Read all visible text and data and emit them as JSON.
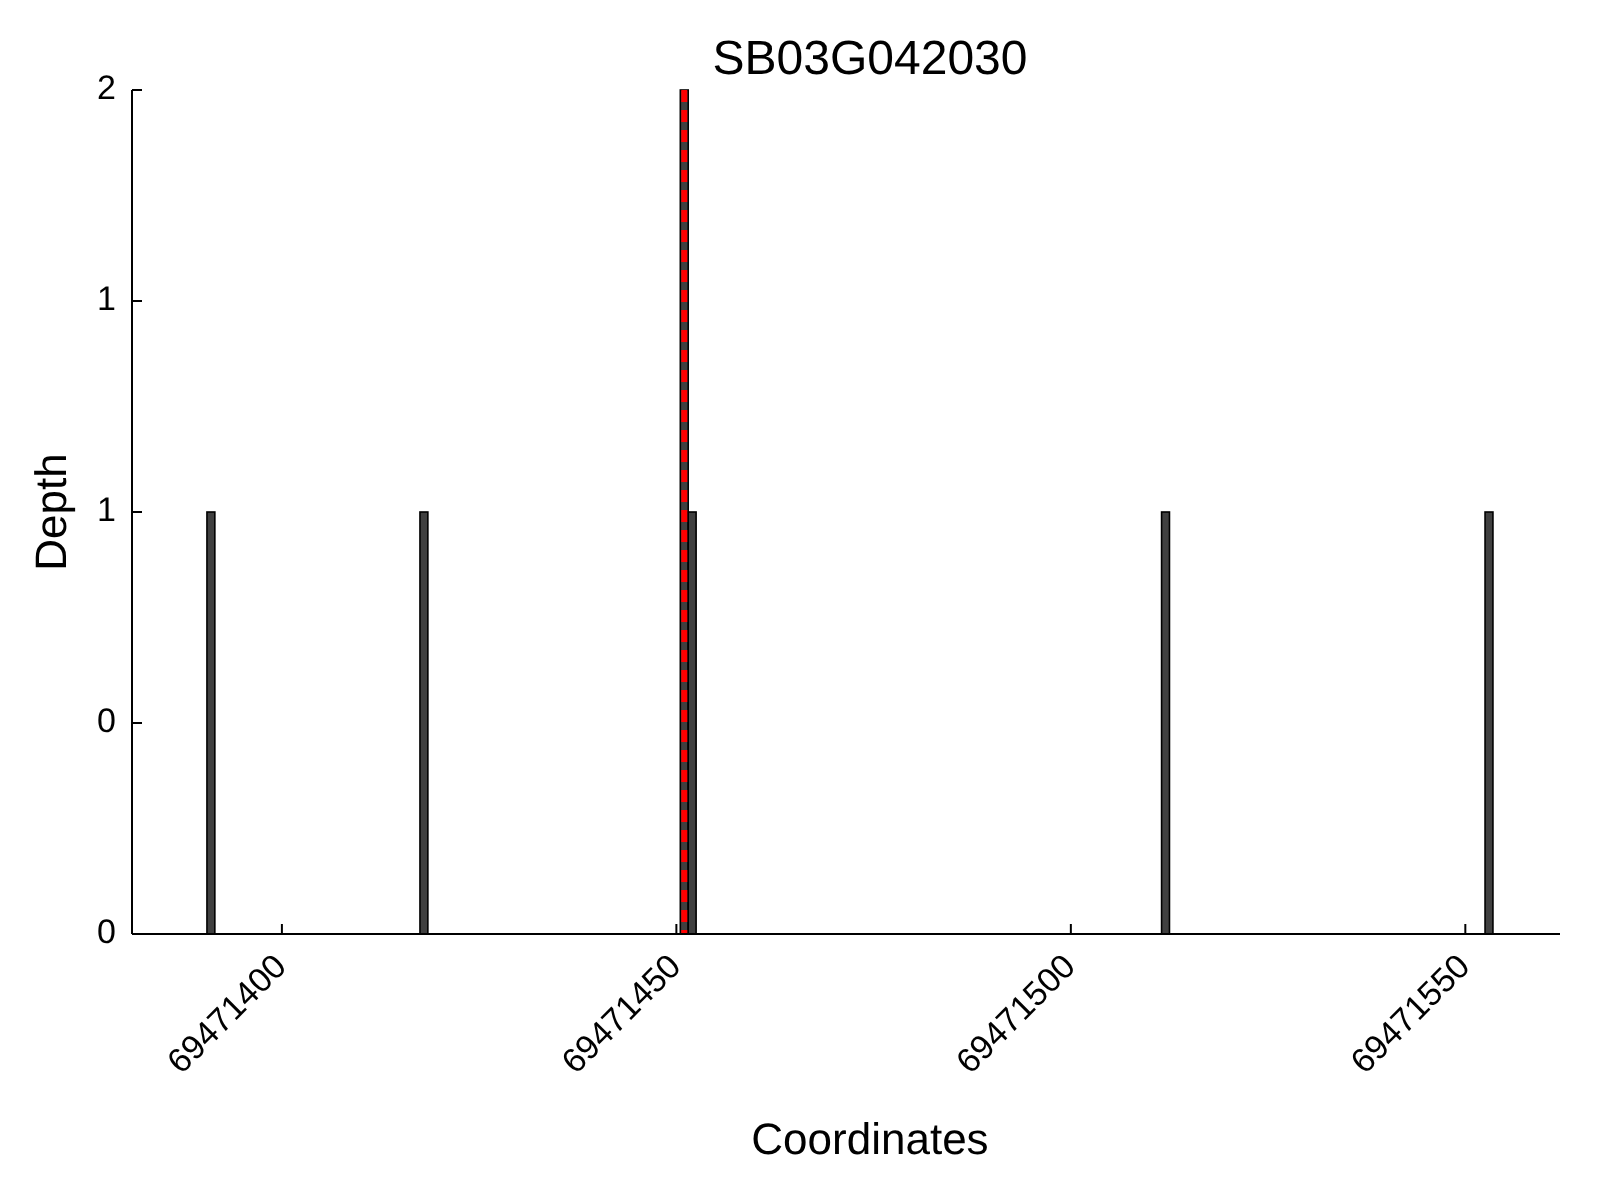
{
  "chart_data": {
    "type": "bar",
    "title": "SB03G042030",
    "xlabel": "Coordinates",
    "ylabel": "Depth",
    "x": [
      69471391,
      69471418,
      69471451,
      69471452,
      69471512,
      69471553
    ],
    "values": [
      1,
      1,
      2,
      1,
      1,
      1
    ],
    "color": "#404040",
    "xlim": [
      69471381,
      69471562
    ],
    "xticks": [
      69471400,
      69471450,
      69471500,
      69471550
    ],
    "ylim": [
      0,
      2
    ],
    "yticks": [
      0,
      {
        "value": 0.5,
        "label": "0"
      },
      1,
      {
        "value": 1.5,
        "label": "1"
      },
      2
    ],
    "ref_lines": [
      {
        "axis": "x",
        "value": 69471451,
        "color": "#ff0000",
        "line_style": "dashed"
      }
    ],
    "grid": false
  }
}
